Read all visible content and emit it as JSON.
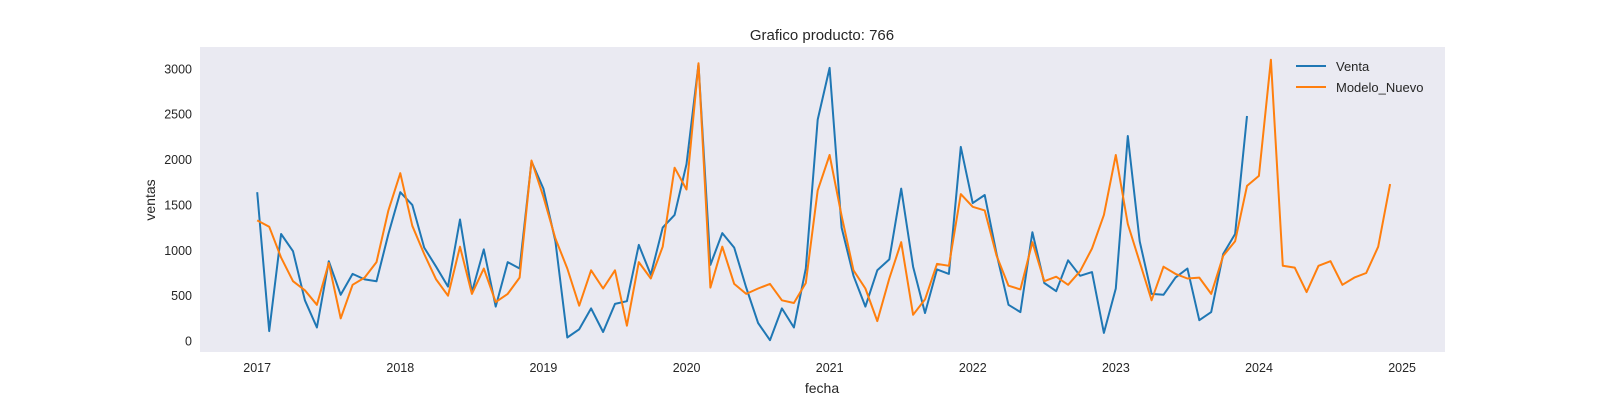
{
  "chart_data": {
    "type": "line",
    "title": "Grafico producto: 766",
    "xlabel": "fecha",
    "ylabel": "ventas",
    "grid": false,
    "legend_position": "top-right",
    "xlim": [
      2016.6,
      2025.3
    ],
    "ylim": [
      -120,
      3240
    ],
    "x_ticks": [
      2017,
      2018,
      2019,
      2020,
      2021,
      2022,
      2023,
      2024,
      2025
    ],
    "x_tick_labels": [
      "2017",
      "2018",
      "2019",
      "2020",
      "2021",
      "2022",
      "2023",
      "2024",
      "2025"
    ],
    "y_ticks": [
      0,
      500,
      1000,
      1500,
      2000,
      2500,
      3000
    ],
    "y_tick_labels": [
      "0",
      "500",
      "1000",
      "1500",
      "2000",
      "2500",
      "3000"
    ],
    "series": [
      {
        "name": "Venta",
        "color": "#1f77b4",
        "x_start": 2017,
        "x_step": 0.08333,
        "values": [
          1640,
          110,
          1180,
          990,
          450,
          150,
          880,
          510,
          740,
          680,
          660,
          1180,
          1640,
          1500,
          1030,
          820,
          600,
          1340,
          540,
          1010,
          380,
          870,
          800,
          1980,
          1680,
          1100,
          40,
          130,
          360,
          100,
          410,
          440,
          1060,
          730,
          1250,
          1390,
          1950,
          3050,
          840,
          1190,
          1030,
          590,
          200,
          10,
          360,
          150,
          800,
          2440,
          3010,
          1250,
          720,
          380,
          780,
          900,
          1680,
          820,
          310,
          790,
          740,
          2140,
          1520,
          1610,
          960,
          400,
          320,
          1200,
          640,
          550,
          890,
          720,
          760,
          90,
          580,
          2260,
          1100,
          520,
          510,
          700,
          800,
          230,
          320,
          960,
          1180,
          2480
        ]
      },
      {
        "name": "Modelo_Nuevo",
        "color": "#ff7f0e",
        "x_start": 2017,
        "x_step": 0.08333,
        "values": [
          1330,
          1260,
          920,
          660,
          560,
          400,
          860,
          250,
          620,
          700,
          870,
          1440,
          1850,
          1270,
          960,
          680,
          500,
          1040,
          520,
          800,
          430,
          520,
          700,
          1990,
          1590,
          1130,
          800,
          390,
          780,
          580,
          780,
          170,
          870,
          690,
          1040,
          1910,
          1670,
          3060,
          590,
          1040,
          630,
          520,
          580,
          630,
          450,
          420,
          640,
          1660,
          2050,
          1380,
          780,
          580,
          220,
          690,
          1090,
          290,
          460,
          850,
          830,
          1620,
          1480,
          1440,
          940,
          610,
          570,
          1090,
          660,
          710,
          620,
          770,
          1020,
          1390,
          2050,
          1290,
          870,
          450,
          820,
          740,
          690,
          700,
          520,
          940,
          1100,
          1710,
          1820,
          3100,
          830,
          810,
          540,
          830,
          880,
          620,
          700,
          750,
          1040,
          1730
        ]
      }
    ]
  }
}
